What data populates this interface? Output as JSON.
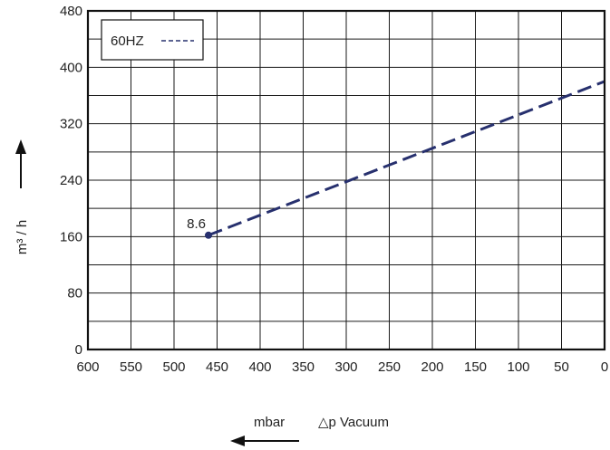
{
  "chart_data": {
    "type": "line",
    "xlabel_unit": "mbar",
    "xlabel": "△p  Vacuum",
    "ylabel": "m³ / h",
    "xlim": [
      600,
      0
    ],
    "ylim": [
      0,
      480
    ],
    "x_ticks": [
      "600",
      "550",
      "500",
      "450",
      "400",
      "350",
      "300",
      "250",
      "200",
      "150",
      "100",
      "50",
      "0"
    ],
    "y_ticks": [
      "0",
      "80",
      "160",
      "240",
      "320",
      "400",
      "480"
    ],
    "grid": true,
    "legend": {
      "position": "top-left",
      "label": "60HZ"
    },
    "series": [
      {
        "name": "60HZ",
        "style": "dashed",
        "color": "#27306e",
        "x": [
          460,
          0
        ],
        "y": [
          162,
          380
        ]
      }
    ],
    "annotations": [
      {
        "text": "8.6",
        "x": 460,
        "y": 162
      }
    ]
  }
}
